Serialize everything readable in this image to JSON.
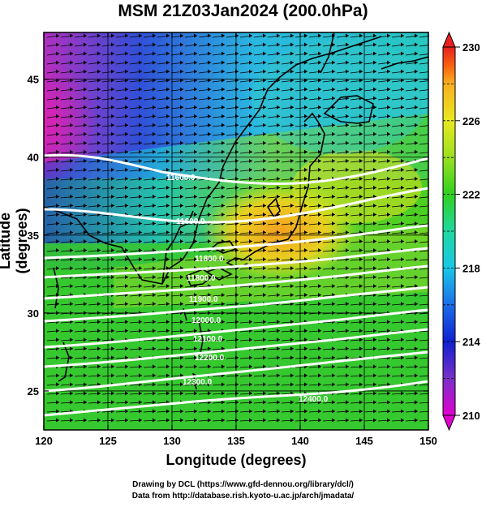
{
  "title": "MSM 21Z03Jan2024 (200.0hPa)",
  "x_axis": {
    "label": "Longitude (degrees)",
    "ticks": [
      "120",
      "125",
      "130",
      "135",
      "140",
      "145",
      "150"
    ]
  },
  "y_axis": {
    "label": "Latitude (degrees)",
    "ticks": [
      "25",
      "30",
      "35",
      "40",
      "45"
    ]
  },
  "colorbar": {
    "ticks": [
      "210",
      "214",
      "218",
      "222",
      "226",
      "230"
    ],
    "colors": [
      "#e000d0",
      "#7a30c8",
      "#1020d0",
      "#1c6de8",
      "#18c8e8",
      "#20d8a0",
      "#30d020",
      "#9ae020",
      "#e8e820",
      "#f8b020",
      "#f86010",
      "#e82020"
    ]
  },
  "contours": {
    "labels": [
      "11600.0",
      "11600.0",
      "11800.0",
      "11800.0",
      "11900.0",
      "12000.0",
      "12100.0",
      "12200.0",
      "12300.0",
      "12400.0"
    ]
  },
  "footer": {
    "line1": "Drawing by DCL (https://www.gfd-dennou.org/library/dcl/)",
    "line2": "Data from http://database.rish.kyoto-u.ac.jp/arch/jmadata/"
  }
}
